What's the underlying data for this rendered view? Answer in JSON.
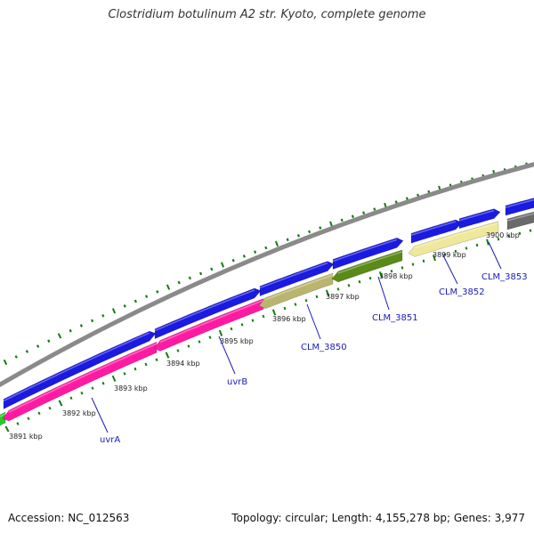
{
  "title": "Clostridium botulinum A2 str. Kyoto, complete genome",
  "accession": "Accession: NC_012563",
  "topology": "Topology: circular; Length: 4,155,278 bp; Genes: 3,977",
  "colors": {
    "backbone": "#8a8a8a",
    "cds_forward": "#1a1ae0",
    "uvrA": "#ff1aa3",
    "uvrB": "#ff1aa3",
    "CLM_3850": "#b9b56e",
    "CLM_3851": "#5a8a18",
    "CLM_3852": "#efe79a",
    "CLM_3853": "#6a6a6a",
    "prior_gene": "#22cc22",
    "tick_minor": "#127c12",
    "tick_major": "#127c12",
    "label": "#1a1ab8"
  },
  "kbp_labels": [
    "3891 kbp",
    "3892 kbp",
    "3893 kbp",
    "3894 kbp",
    "3895 kbp",
    "3896 kbp",
    "3897 kbp",
    "3898 kbp",
    "3899 kbp",
    "3900 kbp"
  ],
  "gene_labels": {
    "uvrA": "uvrA",
    "uvrB": "uvrB",
    "CLM_3850": "CLM_3850",
    "CLM_3851": "CLM_3851",
    "CLM_3852": "CLM_3852",
    "CLM_3853": "CLM_3853"
  }
}
